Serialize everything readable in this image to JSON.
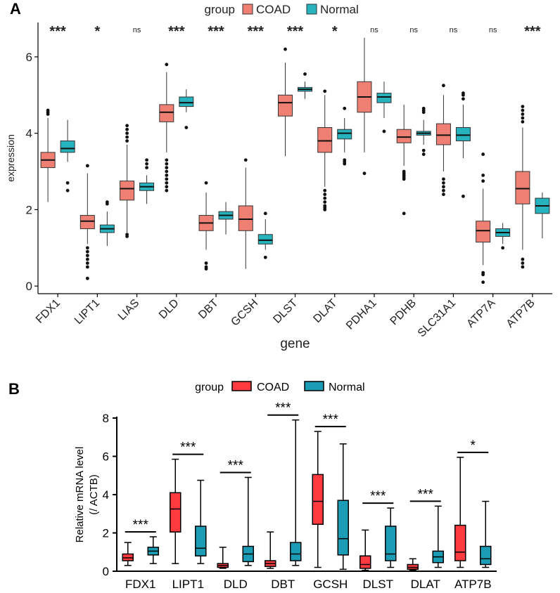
{
  "panels": {
    "a": {
      "letter": "A"
    },
    "b": {
      "letter": "B"
    }
  },
  "colors": {
    "coad_a": "#F07F73",
    "normal_a": "#26B3BD",
    "coad_b": "#FF3B3F",
    "normal_b": "#1C9BB5"
  },
  "chart_data": [
    {
      "type": "boxplot",
      "title": "",
      "xlabel": "gene",
      "ylabel": "expression",
      "ylim": [
        -0.2,
        6.9
      ],
      "yticks": [
        0,
        2,
        4,
        6
      ],
      "legend": {
        "title": "group",
        "entries": [
          "COAD",
          "Normal"
        ],
        "position": "top"
      },
      "categories": [
        "FDX1",
        "LIPT1",
        "LIAS",
        "DLD",
        "DBT",
        "GCSH",
        "DLST",
        "DLAT",
        "PDHA1",
        "PDHB",
        "SLC31A1",
        "ATP7A",
        "ATP7B"
      ],
      "significance": [
        "***",
        "*",
        "ns",
        "***",
        "***",
        "***",
        "***",
        "*",
        "ns",
        "ns",
        "ns",
        "ns",
        "***"
      ],
      "series": [
        {
          "name": "COAD",
          "boxes": [
            {
              "min": 2.2,
              "q1": 3.1,
              "median": 3.3,
              "q3": 3.5,
              "max": 4.4,
              "outliers": [
                4.5,
                4.55,
                4.6
              ]
            },
            {
              "min": 1.1,
              "q1": 1.5,
              "median": 1.7,
              "q3": 1.85,
              "max": 2.95,
              "outliers": [
                0.5,
                0.6,
                0.7,
                0.8,
                0.9,
                1.0,
                0.2,
                3.15
              ]
            },
            {
              "min": 1.4,
              "q1": 2.25,
              "median": 2.55,
              "q3": 2.75,
              "max": 3.7,
              "outliers": [
                1.3,
                1.35,
                3.8,
                3.9,
                4.0,
                4.1,
                4.2
              ]
            },
            {
              "min": 3.5,
              "q1": 4.3,
              "median": 4.55,
              "q3": 4.75,
              "max": 5.6,
              "outliers": [
                2.5,
                2.6,
                2.7,
                2.8,
                2.9,
                3.0,
                3.1,
                3.2,
                3.3,
                5.8
              ]
            },
            {
              "min": 0.95,
              "q1": 1.45,
              "median": 1.65,
              "q3": 1.85,
              "max": 2.45,
              "outliers": [
                0.45,
                0.5,
                0.6,
                2.7
              ]
            },
            {
              "min": 0.45,
              "q1": 1.45,
              "median": 1.75,
              "q3": 2.1,
              "max": 3.1,
              "outliers": [
                3.3
              ]
            },
            {
              "min": 3.4,
              "q1": 4.45,
              "median": 4.8,
              "q3": 5.0,
              "max": 5.85,
              "outliers": [
                6.2
              ]
            },
            {
              "min": 2.6,
              "q1": 3.5,
              "median": 3.8,
              "q3": 4.15,
              "max": 5.0,
              "outliers": [
                2.0,
                2.05,
                2.1,
                2.2,
                2.3,
                2.4,
                2.5,
                5.1
              ]
            },
            {
              "min": 3.5,
              "q1": 4.55,
              "median": 4.95,
              "q3": 5.35,
              "max": 6.5,
              "outliers": [
                2.95
              ]
            },
            {
              "min": 3.15,
              "q1": 3.75,
              "median": 3.9,
              "q3": 4.1,
              "max": 4.75,
              "outliers": [
                1.9,
                2.8,
                2.85,
                2.9,
                2.95,
                3.0
              ]
            },
            {
              "min": 3.0,
              "q1": 3.7,
              "median": 3.95,
              "q3": 4.25,
              "max": 5.0,
              "outliers": [
                2.4,
                2.5,
                2.6,
                2.7,
                2.8,
                5.25
              ]
            },
            {
              "min": 0.55,
              "q1": 1.15,
              "median": 1.45,
              "q3": 1.7,
              "max": 2.55,
              "outliers": [
                0.1,
                0.3,
                0.35,
                2.75,
                2.9,
                3.45
              ]
            },
            {
              "min": 0.95,
              "q1": 2.15,
              "median": 2.55,
              "q3": 3.0,
              "max": 4.15,
              "outliers": [
                0.5,
                0.6,
                0.7,
                4.3,
                4.4,
                4.5,
                4.6,
                4.7
              ]
            }
          ]
        },
        {
          "name": "Normal",
          "boxes": [
            {
              "min": 3.25,
              "q1": 3.5,
              "median": 3.6,
              "q3": 3.8,
              "max": 4.35,
              "outliers": [
                2.5,
                2.7
              ]
            },
            {
              "min": 1.05,
              "q1": 1.4,
              "median": 1.5,
              "q3": 1.6,
              "max": 1.95,
              "outliers": [
                2.15,
                2.2
              ]
            },
            {
              "min": 2.15,
              "q1": 2.5,
              "median": 2.6,
              "q3": 2.7,
              "max": 2.9,
              "outliers": [
                3.1,
                3.2,
                3.3
              ]
            },
            {
              "min": 4.55,
              "q1": 4.7,
              "median": 4.8,
              "q3": 4.95,
              "max": 5.15,
              "outliers": [
                4.15
              ]
            },
            {
              "min": 1.35,
              "q1": 1.75,
              "median": 1.85,
              "q3": 1.95,
              "max": 2.2,
              "outliers": []
            },
            {
              "min": 0.95,
              "q1": 1.1,
              "median": 1.2,
              "q3": 1.35,
              "max": 1.75,
              "outliers": [
                0.75,
                1.9
              ]
            },
            {
              "min": 4.9,
              "q1": 5.1,
              "median": 5.15,
              "q3": 5.2,
              "max": 5.35,
              "outliers": [
                5.55
              ]
            },
            {
              "min": 3.5,
              "q1": 3.85,
              "median": 4.0,
              "q3": 4.1,
              "max": 4.4,
              "outliers": [
                3.2,
                3.25,
                3.3,
                4.65
              ]
            },
            {
              "min": 4.4,
              "q1": 4.8,
              "median": 4.95,
              "q3": 5.05,
              "max": 5.35,
              "outliers": [
                4.05
              ]
            },
            {
              "min": 3.7,
              "q1": 3.95,
              "median": 4.0,
              "q3": 4.05,
              "max": 4.35,
              "outliers": [
                3.45,
                3.55,
                4.55,
                4.6,
                4.65
              ]
            },
            {
              "min": 3.35,
              "q1": 3.8,
              "median": 3.95,
              "q3": 4.15,
              "max": 4.75,
              "outliers": [
                2.35,
                4.9,
                5.0,
                5.05
              ]
            },
            {
              "min": 1.1,
              "q1": 1.3,
              "median": 1.4,
              "q3": 1.5,
              "max": 1.65,
              "outliers": [
                1.0
              ]
            },
            {
              "min": 1.25,
              "q1": 1.9,
              "median": 2.1,
              "q3": 2.3,
              "max": 2.45,
              "outliers": []
            }
          ]
        }
      ]
    },
    {
      "type": "boxplot",
      "title": "",
      "xlabel": "",
      "ylabel": "Relative mRNA level",
      "ylabel2": "(/ ACTB)",
      "ylim": [
        0,
        8
      ],
      "yticks": [
        0,
        2,
        4,
        6,
        8
      ],
      "legend": {
        "title": "group",
        "entries": [
          "COAD",
          "Normal"
        ],
        "position": "top"
      },
      "categories": [
        "FDX1",
        "LIPT1",
        "DLD",
        "DBT",
        "GCSH",
        "DLST",
        "DLAT",
        "ATP7B"
      ],
      "significance": [
        "***",
        "***",
        "***",
        "***",
        "***",
        "***",
        "***",
        "*"
      ],
      "series": [
        {
          "name": "COAD",
          "boxes": [
            {
              "min": 0.3,
              "q1": 0.55,
              "median": 0.7,
              "q3": 0.9,
              "max": 1.5
            },
            {
              "min": 0.4,
              "q1": 2.05,
              "median": 3.25,
              "q3": 4.1,
              "max": 5.85
            },
            {
              "min": 0.15,
              "q1": 0.2,
              "median": 0.3,
              "q3": 0.4,
              "max": 1.25
            },
            {
              "min": 0.15,
              "q1": 0.25,
              "median": 0.4,
              "q3": 0.55,
              "max": 2.05
            },
            {
              "min": 0.2,
              "q1": 2.45,
              "median": 3.65,
              "q3": 5.05,
              "max": 7.3
            },
            {
              "min": 0.05,
              "q1": 0.15,
              "median": 0.35,
              "q3": 0.8,
              "max": 2.15
            },
            {
              "min": 0.05,
              "q1": 0.1,
              "median": 0.2,
              "q3": 0.35,
              "max": 0.65
            },
            {
              "min": 0.2,
              "q1": 0.55,
              "median": 1.0,
              "q3": 2.4,
              "max": 5.95
            }
          ]
        },
        {
          "name": "Normal",
          "boxes": [
            {
              "min": 0.4,
              "q1": 0.85,
              "median": 1.05,
              "q3": 1.25,
              "max": 1.8
            },
            {
              "min": 0.4,
              "q1": 0.8,
              "median": 1.2,
              "q3": 2.35,
              "max": 4.75
            },
            {
              "min": 0.3,
              "q1": 0.5,
              "median": 0.9,
              "q3": 1.3,
              "max": 4.9
            },
            {
              "min": 0.3,
              "q1": 0.55,
              "median": 0.9,
              "q3": 1.5,
              "max": 7.9
            },
            {
              "min": 0.1,
              "q1": 0.85,
              "median": 1.7,
              "q3": 3.7,
              "max": 6.65
            },
            {
              "min": 0.2,
              "q1": 0.55,
              "median": 0.9,
              "q3": 2.35,
              "max": 3.3
            },
            {
              "min": 0.2,
              "q1": 0.45,
              "median": 0.75,
              "q3": 1.05,
              "max": 3.4
            },
            {
              "min": 0.2,
              "q1": 0.35,
              "median": 0.65,
              "q3": 1.3,
              "max": 3.65
            }
          ]
        }
      ]
    }
  ]
}
